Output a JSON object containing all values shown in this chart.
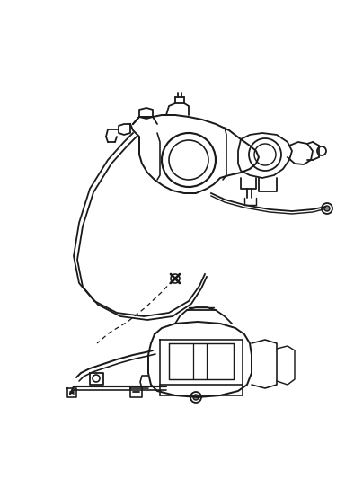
{
  "bg_color": "#ffffff",
  "line_color": "#1a1a1a",
  "line_width": 1.3,
  "fig_width": 3.94,
  "fig_height": 5.33,
  "dpi": 100
}
